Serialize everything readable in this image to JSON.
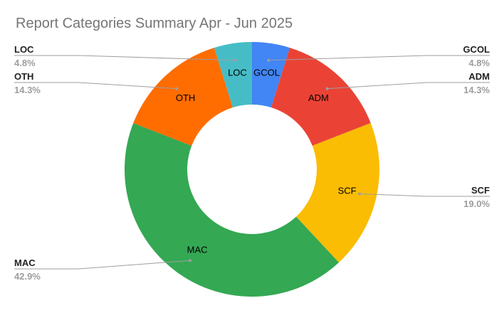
{
  "chart_data": {
    "type": "pie",
    "donut": true,
    "title": "Report Categories Summary Apr - Jun 2025",
    "slices": [
      {
        "label": "GCOL",
        "value": 4.8,
        "display": "4.8%",
        "color": "#4285f4",
        "side": "right"
      },
      {
        "label": "ADM",
        "value": 14.3,
        "display": "14.3%",
        "color": "#ea4335",
        "side": "right"
      },
      {
        "label": "SCF",
        "value": 19.0,
        "display": "19.0%",
        "color": "#fbbc04",
        "side": "right"
      },
      {
        "label": "MAC",
        "value": 42.9,
        "display": "42.9%",
        "color": "#34a853",
        "side": "left"
      },
      {
        "label": "OTH",
        "value": 14.3,
        "display": "14.3%",
        "color": "#ff6d01",
        "side": "left"
      },
      {
        "label": "LOC",
        "value": 4.8,
        "display": "4.8%",
        "color": "#46bdc6",
        "side": "left"
      }
    ],
    "legend": "callouts-both-sides"
  }
}
